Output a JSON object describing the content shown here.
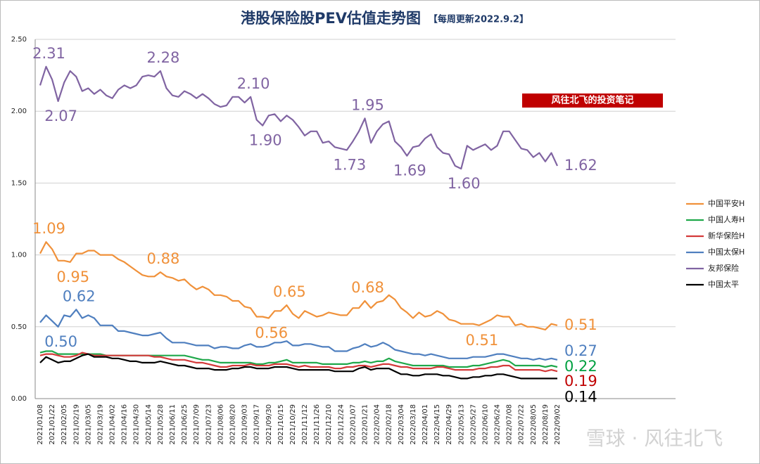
{
  "chart_data": {
    "type": "line",
    "title": "港股保险股PEV估值走势图",
    "subtitle": "【每周更新2022.9.2】",
    "annotation": "风往北飞的投资笔记",
    "watermark": "雪球 · 风往北飞",
    "grid": true,
    "legend": "right",
    "ylim": [
      0,
      2.5
    ],
    "yticks": [
      {
        "value": 0,
        "label": "0.00"
      },
      {
        "value": 0.5,
        "label": "0.50"
      },
      {
        "value": 1,
        "label": "1.00"
      },
      {
        "value": 1.5,
        "label": "1.50"
      },
      {
        "value": 2,
        "label": "2.00"
      },
      {
        "value": 2.5,
        "label": "2.50"
      }
    ],
    "categories": [
      "2021/01/08",
      null,
      "2021/01/22",
      null,
      "2021/02/05",
      null,
      "2021/02/19",
      null,
      "2021/03/05",
      null,
      "2021/03/19",
      null,
      "2021/04/02",
      null,
      "2021/04/16",
      null,
      "2021/04/30",
      null,
      "2021/05/14",
      null,
      "2021/05/28",
      null,
      "2021/06/11",
      null,
      "2021/06/25",
      null,
      "2021/07/09",
      null,
      "2021/07/23",
      null,
      "2021/08/06",
      null,
      "2021/08/20",
      null,
      "2021/09/03",
      null,
      "2021/09/17",
      null,
      "2021/09/30",
      null,
      "2021/10/15",
      null,
      "2021/10/29",
      null,
      "2021/11/12",
      null,
      "2021/11/26",
      null,
      "2021/12/10",
      null,
      "2021/12/24",
      null,
      "2022/01/07",
      null,
      "2022/01/21",
      null,
      "2022/02/04",
      null,
      "2022/02/18",
      null,
      "2022/03/04",
      null,
      "2022/03/18",
      null,
      "2022/04/01",
      null,
      "2022/04/15",
      null,
      "2022/04/29",
      null,
      "2022/05/13",
      null,
      "2022/05/27",
      null,
      "2022/06/10",
      null,
      "2022/06/24",
      null,
      "2022/07/08",
      null,
      "2022/07/22",
      null,
      "2022/08/05",
      null,
      "2022/08/19",
      null,
      "2022/09/02"
    ],
    "series": [
      {
        "name": "中国平安H",
        "color": "#f0913a",
        "values": [
          1.01,
          1.09,
          1.04,
          0.96,
          0.96,
          0.95,
          1.01,
          1.01,
          1.03,
          1.03,
          1.0,
          1.0,
          1.0,
          0.97,
          0.95,
          0.92,
          0.89,
          0.86,
          0.85,
          0.85,
          0.88,
          0.85,
          0.84,
          0.82,
          0.83,
          0.79,
          0.76,
          0.78,
          0.76,
          0.72,
          0.72,
          0.71,
          0.68,
          0.68,
          0.64,
          0.63,
          0.57,
          0.57,
          0.56,
          0.61,
          0.61,
          0.65,
          0.59,
          0.56,
          0.61,
          0.59,
          0.57,
          0.58,
          0.6,
          0.59,
          0.58,
          0.58,
          0.63,
          0.63,
          0.68,
          0.63,
          0.67,
          0.68,
          0.72,
          0.69,
          0.63,
          0.6,
          0.56,
          0.6,
          0.57,
          0.58,
          0.61,
          0.59,
          0.55,
          0.54,
          0.52,
          0.52,
          0.52,
          0.51,
          0.53,
          0.55,
          0.58,
          0.57,
          0.57,
          0.51,
          0.52,
          0.5,
          0.5,
          0.49,
          0.48,
          0.52,
          0.51
        ],
        "value_labels": [
          null,
          "1.09",
          null,
          null,
          null,
          "0.95",
          null,
          null,
          null,
          null,
          null,
          null,
          null,
          null,
          null,
          null,
          null,
          null,
          null,
          null,
          "0.88",
          null,
          null,
          null,
          null,
          null,
          null,
          null,
          null,
          null,
          null,
          null,
          null,
          null,
          null,
          null,
          null,
          null,
          "0.56",
          null,
          null,
          "0.65",
          null,
          null,
          null,
          null,
          null,
          null,
          null,
          null,
          null,
          null,
          null,
          null,
          "0.68",
          null,
          null,
          null,
          null,
          null,
          null,
          null,
          null,
          null,
          null,
          null,
          null,
          null,
          null,
          null,
          null,
          null,
          null,
          "0.51",
          null,
          null,
          null,
          null,
          null,
          null,
          null,
          null,
          null,
          null,
          null,
          null,
          "0.51"
        ]
      },
      {
        "name": "中国人寿H",
        "color": "#1fa84a",
        "values": [
          0.32,
          0.33,
          0.33,
          0.31,
          0.31,
          0.31,
          0.31,
          0.31,
          0.31,
          0.31,
          0.31,
          0.3,
          0.3,
          0.3,
          0.3,
          0.3,
          0.3,
          0.3,
          0.3,
          0.3,
          0.3,
          0.3,
          0.3,
          0.3,
          0.3,
          0.29,
          0.28,
          0.27,
          0.27,
          0.26,
          0.25,
          0.25,
          0.25,
          0.25,
          0.25,
          0.25,
          0.24,
          0.24,
          0.25,
          0.25,
          0.26,
          0.27,
          0.25,
          0.25,
          0.25,
          0.25,
          0.25,
          0.24,
          0.24,
          0.24,
          0.24,
          0.24,
          0.25,
          0.25,
          0.26,
          0.25,
          0.26,
          0.26,
          0.28,
          0.26,
          0.25,
          0.24,
          0.23,
          0.23,
          0.23,
          0.23,
          0.23,
          0.23,
          0.22,
          0.22,
          0.22,
          0.22,
          0.23,
          0.23,
          0.24,
          0.25,
          0.26,
          0.27,
          0.26,
          0.23,
          0.23,
          0.23,
          0.23,
          0.23,
          0.22,
          0.23,
          0.22
        ],
        "value_labels": [
          null,
          null,
          null,
          null,
          null,
          null,
          null,
          null,
          null,
          null,
          null,
          null,
          null,
          null,
          null,
          null,
          null,
          null,
          null,
          null,
          null,
          null,
          null,
          null,
          null,
          null,
          null,
          null,
          null,
          null,
          null,
          null,
          null,
          null,
          null,
          null,
          null,
          null,
          null,
          null,
          null,
          null,
          null,
          null,
          null,
          null,
          null,
          null,
          null,
          null,
          null,
          null,
          null,
          null,
          null,
          null,
          null,
          null,
          null,
          null,
          null,
          null,
          null,
          null,
          null,
          null,
          null,
          null,
          null,
          null,
          null,
          null,
          null,
          null,
          null,
          null,
          null,
          null,
          null,
          null,
          null,
          null,
          null,
          null,
          null,
          null,
          "0.22"
        ]
      },
      {
        "name": "新华保险H",
        "color": "#d43a3a",
        "values": [
          0.3,
          0.31,
          0.31,
          0.3,
          0.29,
          0.29,
          0.3,
          0.32,
          0.31,
          0.3,
          0.3,
          0.3,
          0.3,
          0.3,
          0.3,
          0.3,
          0.3,
          0.3,
          0.3,
          0.29,
          0.29,
          0.28,
          0.27,
          0.27,
          0.27,
          0.26,
          0.25,
          0.25,
          0.24,
          0.23,
          0.22,
          0.22,
          0.23,
          0.23,
          0.23,
          0.24,
          0.23,
          0.23,
          0.23,
          0.24,
          0.24,
          0.24,
          0.23,
          0.22,
          0.23,
          0.22,
          0.22,
          0.22,
          0.22,
          0.21,
          0.21,
          0.22,
          0.22,
          0.23,
          0.23,
          0.22,
          0.23,
          0.24,
          0.24,
          0.23,
          0.22,
          0.22,
          0.21,
          0.21,
          0.21,
          0.21,
          0.22,
          0.22,
          0.21,
          0.2,
          0.2,
          0.2,
          0.2,
          0.21,
          0.21,
          0.22,
          0.22,
          0.23,
          0.23,
          0.2,
          0.2,
          0.2,
          0.2,
          0.2,
          0.19,
          0.2,
          0.19
        ],
        "value_labels": [
          null,
          null,
          null,
          null,
          null,
          null,
          null,
          null,
          null,
          null,
          null,
          null,
          null,
          null,
          null,
          null,
          null,
          null,
          null,
          null,
          null,
          null,
          null,
          null,
          null,
          null,
          null,
          null,
          null,
          null,
          null,
          null,
          null,
          null,
          null,
          null,
          null,
          null,
          null,
          null,
          null,
          null,
          null,
          null,
          null,
          null,
          null,
          null,
          null,
          null,
          null,
          null,
          null,
          null,
          null,
          null,
          null,
          null,
          null,
          null,
          null,
          null,
          null,
          null,
          null,
          null,
          null,
          null,
          null,
          null,
          null,
          null,
          null,
          null,
          null,
          null,
          null,
          null,
          null,
          null,
          null,
          null,
          null,
          null,
          null,
          null,
          "0.19"
        ]
      },
      {
        "name": "中国太保H",
        "color": "#4f7fbf",
        "values": [
          0.53,
          0.58,
          0.54,
          0.5,
          0.58,
          0.57,
          0.62,
          0.56,
          0.58,
          0.56,
          0.51,
          0.51,
          0.51,
          0.47,
          0.47,
          0.46,
          0.45,
          0.44,
          0.44,
          0.45,
          0.46,
          0.42,
          0.39,
          0.39,
          0.39,
          0.38,
          0.37,
          0.37,
          0.37,
          0.35,
          0.36,
          0.36,
          0.35,
          0.35,
          0.37,
          0.38,
          0.36,
          0.36,
          0.37,
          0.39,
          0.39,
          0.4,
          0.37,
          0.37,
          0.38,
          0.38,
          0.37,
          0.36,
          0.36,
          0.33,
          0.33,
          0.33,
          0.35,
          0.36,
          0.38,
          0.36,
          0.37,
          0.39,
          0.37,
          0.34,
          0.33,
          0.32,
          0.31,
          0.31,
          0.3,
          0.31,
          0.3,
          0.29,
          0.28,
          0.28,
          0.28,
          0.28,
          0.29,
          0.29,
          0.29,
          0.3,
          0.31,
          0.31,
          0.3,
          0.29,
          0.28,
          0.28,
          0.27,
          0.28,
          0.27,
          0.28,
          0.27
        ],
        "value_labels": [
          null,
          null,
          null,
          "0.50",
          null,
          null,
          "0.62",
          null,
          null,
          null,
          null,
          null,
          null,
          null,
          null,
          null,
          null,
          null,
          null,
          null,
          null,
          null,
          null,
          null,
          null,
          null,
          null,
          null,
          null,
          null,
          null,
          null,
          null,
          null,
          null,
          null,
          null,
          null,
          null,
          null,
          null,
          null,
          null,
          null,
          null,
          null,
          null,
          null,
          null,
          null,
          null,
          null,
          null,
          null,
          null,
          null,
          null,
          null,
          null,
          null,
          null,
          null,
          null,
          null,
          null,
          null,
          null,
          null,
          null,
          null,
          null,
          null,
          null,
          null,
          null,
          null,
          null,
          null,
          null,
          null,
          null,
          null,
          null,
          null,
          null,
          null,
          "0.27"
        ]
      },
      {
        "name": "友邦保险",
        "color": "#8064a2",
        "values": [
          2.18,
          2.31,
          2.22,
          2.07,
          2.2,
          2.28,
          2.24,
          2.14,
          2.16,
          2.12,
          2.15,
          2.11,
          2.09,
          2.15,
          2.18,
          2.16,
          2.18,
          2.24,
          2.25,
          2.24,
          2.28,
          2.16,
          2.11,
          2.1,
          2.14,
          2.12,
          2.09,
          2.12,
          2.09,
          2.05,
          2.03,
          2.04,
          2.1,
          2.1,
          2.06,
          2.1,
          1.94,
          1.9,
          1.97,
          1.98,
          1.93,
          1.97,
          1.94,
          1.89,
          1.83,
          1.86,
          1.86,
          1.78,
          1.79,
          1.75,
          1.74,
          1.73,
          1.79,
          1.86,
          1.95,
          1.78,
          1.86,
          1.91,
          1.93,
          1.79,
          1.75,
          1.69,
          1.75,
          1.76,
          1.81,
          1.84,
          1.75,
          1.71,
          1.7,
          1.62,
          1.6,
          1.76,
          1.73,
          1.75,
          1.77,
          1.73,
          1.76,
          1.86,
          1.86,
          1.8,
          1.74,
          1.73,
          1.68,
          1.71,
          1.65,
          1.71,
          1.62
        ],
        "value_labels": [
          null,
          "2.31",
          null,
          "2.07",
          null,
          null,
          null,
          null,
          null,
          null,
          null,
          null,
          null,
          null,
          null,
          null,
          null,
          null,
          null,
          null,
          "2.28",
          null,
          null,
          null,
          null,
          null,
          null,
          null,
          null,
          null,
          null,
          null,
          null,
          null,
          null,
          "2.10",
          null,
          "1.90",
          null,
          null,
          null,
          null,
          null,
          null,
          null,
          null,
          null,
          null,
          null,
          null,
          null,
          "1.73",
          null,
          null,
          "1.95",
          null,
          null,
          null,
          null,
          null,
          null,
          "1.69",
          null,
          null,
          null,
          null,
          null,
          null,
          null,
          null,
          "1.60",
          null,
          null,
          null,
          null,
          null,
          null,
          null,
          null,
          null,
          null,
          null,
          null,
          null,
          null,
          null,
          "1.62"
        ]
      },
      {
        "name": "中国太平",
        "color": "#000000",
        "values": [
          0.25,
          0.29,
          0.27,
          0.25,
          0.26,
          0.26,
          0.28,
          0.3,
          0.31,
          0.29,
          0.29,
          0.29,
          0.28,
          0.28,
          0.27,
          0.26,
          0.26,
          0.25,
          0.25,
          0.25,
          0.26,
          0.25,
          0.24,
          0.23,
          0.23,
          0.22,
          0.21,
          0.21,
          0.21,
          0.2,
          0.2,
          0.2,
          0.21,
          0.21,
          0.22,
          0.22,
          0.21,
          0.21,
          0.21,
          0.22,
          0.22,
          0.22,
          0.21,
          0.2,
          0.2,
          0.2,
          0.2,
          0.2,
          0.2,
          0.19,
          0.19,
          0.19,
          0.19,
          0.21,
          0.22,
          0.2,
          0.21,
          0.21,
          0.21,
          0.19,
          0.17,
          0.17,
          0.16,
          0.16,
          0.17,
          0.17,
          0.17,
          0.16,
          0.16,
          0.15,
          0.14,
          0.14,
          0.15,
          0.15,
          0.16,
          0.16,
          0.17,
          0.17,
          0.16,
          0.15,
          0.14,
          0.14,
          0.14,
          0.14,
          0.14,
          0.14,
          0.14
        ],
        "value_labels": [
          null,
          null,
          null,
          null,
          null,
          null,
          null,
          null,
          null,
          null,
          null,
          null,
          null,
          null,
          null,
          null,
          null,
          null,
          null,
          null,
          null,
          null,
          null,
          null,
          null,
          null,
          null,
          null,
          null,
          null,
          null,
          null,
          null,
          null,
          null,
          null,
          null,
          null,
          null,
          null,
          null,
          null,
          null,
          null,
          null,
          null,
          null,
          null,
          null,
          null,
          null,
          null,
          null,
          null,
          null,
          null,
          null,
          null,
          null,
          null,
          null,
          null,
          null,
          null,
          null,
          null,
          null,
          null,
          null,
          null,
          null,
          null,
          null,
          null,
          null,
          null,
          null,
          null,
          null,
          null,
          null,
          null,
          null,
          null,
          null,
          null,
          "0.14"
        ]
      }
    ]
  }
}
